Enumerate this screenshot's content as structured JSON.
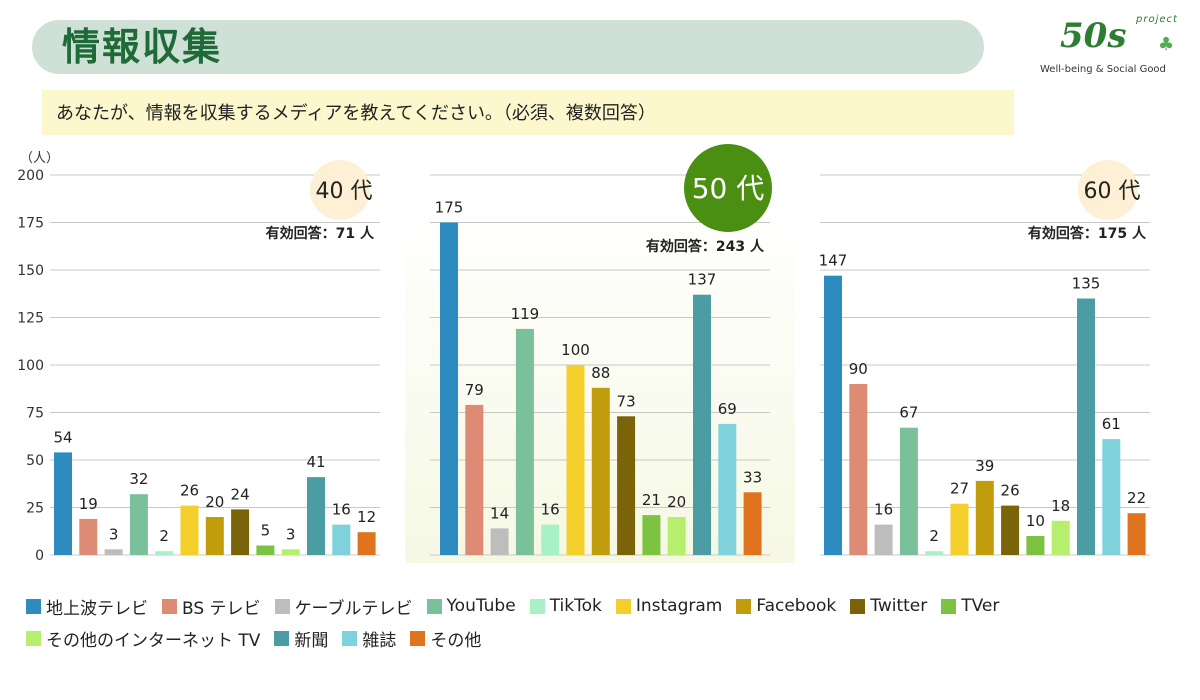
{
  "header": {
    "title": "情報収集"
  },
  "logo": {
    "project_label": "project",
    "mark": "50s",
    "tagline": "Well-being & Social Good"
  },
  "question": {
    "text": "あなたが、情報を収集するメディアを教えてください。（必須、複数回答）"
  },
  "colors": {
    "grid": "#c8c8c8",
    "badge_plain": "#fdf0d5",
    "badge_highlight": "#4b8f12",
    "panel_highlight": "#f6f8e4"
  },
  "chart_data": {
    "type": "bar",
    "yunit": "（人）",
    "ylim": [
      0,
      200
    ],
    "yticks": [
      0,
      25,
      50,
      75,
      100,
      125,
      150,
      175,
      200
    ],
    "categories": [
      "地上波テレビ",
      "BS テレビ",
      "ケーブルテレビ",
      "YouTube",
      "TikTok",
      "Instagram",
      "Facebook",
      "Twitter",
      "TVer",
      "その他のインターネット TV",
      "新聞",
      "雑誌",
      "その他"
    ],
    "category_colors": [
      "#2e8bc0",
      "#dd8b74",
      "#bdbdbd",
      "#7ac09b",
      "#a8f0c6",
      "#f4cf2c",
      "#c19d0e",
      "#7b6309",
      "#7dc241",
      "#b5ef6d",
      "#4b9ca3",
      "#7fd1dc",
      "#e0741e"
    ],
    "series": [
      {
        "name": "40 代",
        "respondents": "有効回答：71 人",
        "highlight": false,
        "values": [
          54,
          19,
          3,
          32,
          2,
          26,
          20,
          24,
          5,
          3,
          41,
          16,
          12
        ]
      },
      {
        "name": "50 代",
        "respondents": "有効回答：243 人",
        "highlight": true,
        "values": [
          175,
          79,
          14,
          119,
          16,
          100,
          88,
          73,
          21,
          20,
          137,
          69,
          33
        ]
      },
      {
        "name": "60 代",
        "respondents": "有効回答：175 人",
        "highlight": false,
        "values": [
          147,
          90,
          16,
          67,
          2,
          27,
          39,
          26,
          10,
          18,
          135,
          61,
          22
        ]
      }
    ]
  },
  "legend": {
    "rows": [
      [
        0,
        1,
        2,
        3,
        4,
        5,
        6,
        7,
        8
      ],
      [
        9,
        10,
        11,
        12
      ]
    ]
  }
}
